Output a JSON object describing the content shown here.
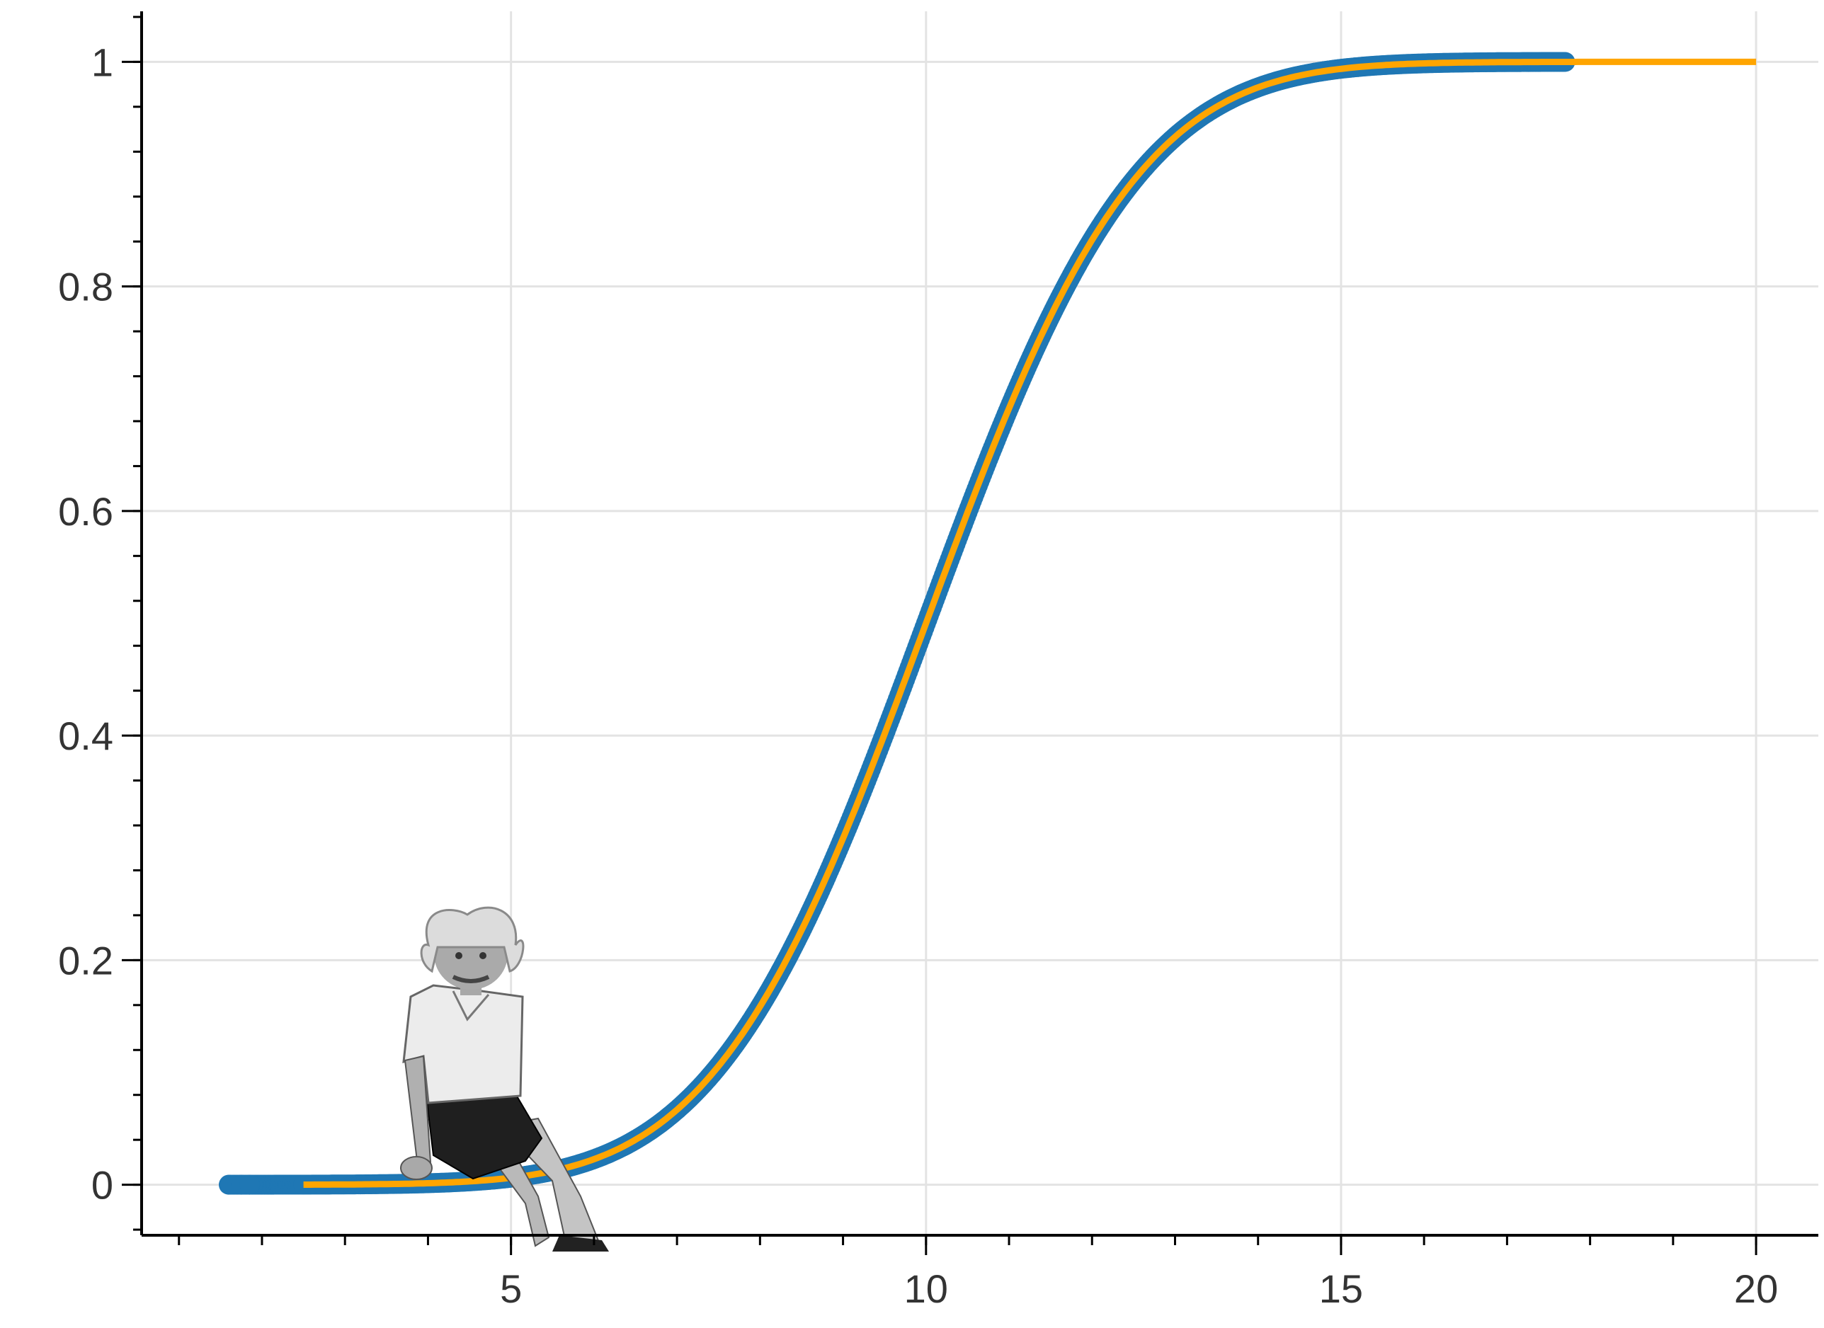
{
  "chart_data": {
    "type": "scatter",
    "title": "",
    "xlabel": "",
    "ylabel": "",
    "xlim": [
      0.55,
      20.75
    ],
    "ylim": [
      -0.045,
      1.045
    ],
    "x_ticks": [
      5,
      10,
      15,
      20
    ],
    "x_tick_labels": [
      "5",
      "10",
      "15",
      "20"
    ],
    "x_minor_step": 1,
    "y_ticks": [
      0,
      0.2,
      0.4,
      0.6,
      0.8,
      1
    ],
    "y_tick_labels": [
      "0",
      "0.2",
      "0.4",
      "0.6",
      "0.8",
      "1"
    ],
    "y_minor_step": 0.04,
    "grid": true,
    "series": [
      {
        "kind": "points",
        "color": "#1f77b4",
        "x_min": 1.6,
        "x_max": 17.7,
        "curve": "normal-cdf",
        "mean": 10,
        "sd": 2
      },
      {
        "kind": "line",
        "color": "#ffa500",
        "x_min": 2.5,
        "x_max": 20,
        "curve": "normal-cdf",
        "mean": 10,
        "sd": 2
      }
    ],
    "annotation_image": "einstein-photo-icon"
  }
}
